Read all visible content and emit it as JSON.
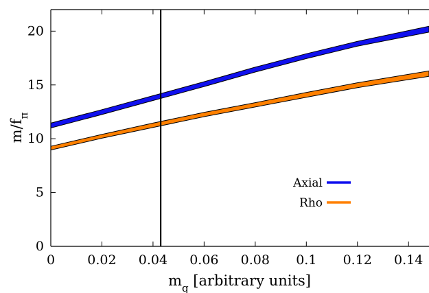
{
  "chart_data": {
    "type": "area",
    "xlabel": {
      "main": "m",
      "sub": "q",
      "rest": " [arbitrary units]"
    },
    "ylabel": {
      "main": "m/f",
      "sub": "π"
    },
    "xlim": [
      0,
      0.148
    ],
    "ylim": [
      0,
      22
    ],
    "xticks": [
      "0",
      "0.02",
      "0.04",
      "0.06",
      "0.08",
      "0.1",
      "0.12",
      "0.14"
    ],
    "yticks": [
      "0",
      "5",
      "10",
      "15",
      "20"
    ],
    "grid": false,
    "legend_position": "lower-right",
    "vline": 0.043,
    "series": [
      {
        "name": "Axial",
        "color": "#1010ee",
        "x": [
          0,
          0.02,
          0.04,
          0.06,
          0.08,
          0.1,
          0.12,
          0.148
        ],
        "lower": [
          11.0,
          12.25,
          13.55,
          14.85,
          16.2,
          17.45,
          18.6,
          19.9
        ],
        "upper": [
          11.45,
          12.7,
          14.0,
          15.3,
          16.65,
          17.9,
          19.05,
          20.45
        ]
      },
      {
        "name": "Rho",
        "color": "#ff8000",
        "x": [
          0,
          0.02,
          0.04,
          0.06,
          0.08,
          0.1,
          0.12,
          0.148
        ],
        "lower": [
          8.95,
          10.05,
          11.05,
          12.05,
          12.95,
          13.85,
          14.75,
          15.8
        ],
        "upper": [
          9.3,
          10.4,
          11.45,
          12.45,
          13.35,
          14.3,
          15.2,
          16.3
        ]
      }
    ]
  }
}
